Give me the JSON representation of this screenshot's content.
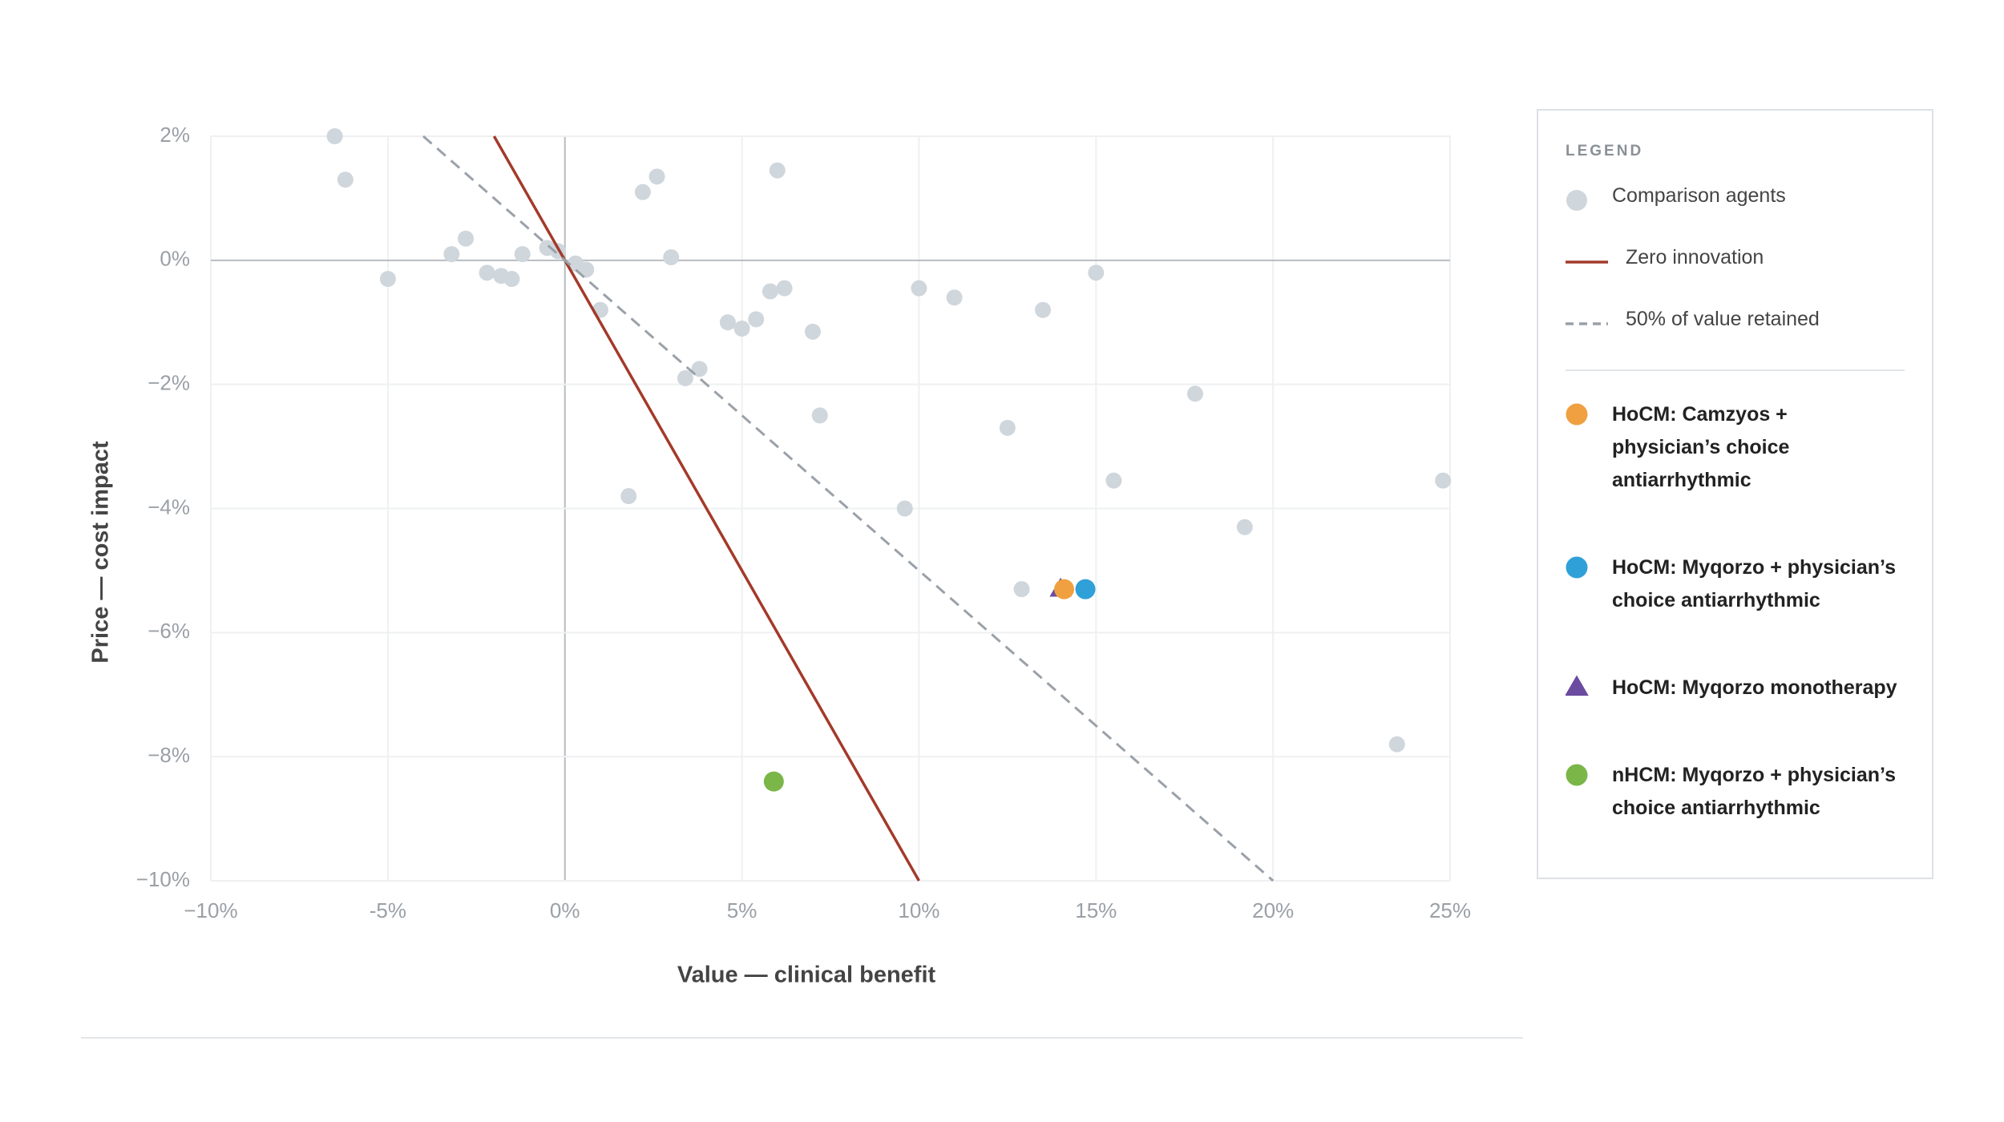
{
  "chart_data": {
    "type": "scatter",
    "x_label": "Value — clinical benefit",
    "y_label": "Price — cost impact",
    "legend_title": "LEGEND",
    "legend_position": "right",
    "grid": true,
    "xlim": [
      -10,
      25
    ],
    "ylim": [
      -10,
      2
    ],
    "xticks": [
      {
        "value": -10,
        "label": "−10%"
      },
      {
        "value": -5,
        "label": "-5%"
      },
      {
        "value": 0,
        "label": "0%"
      },
      {
        "value": 5,
        "label": "5%"
      },
      {
        "value": 10,
        "label": "10%"
      },
      {
        "value": 15,
        "label": "15%"
      },
      {
        "value": 20,
        "label": "20%"
      },
      {
        "value": 25,
        "label": "25%"
      }
    ],
    "yticks": [
      {
        "value": 2,
        "label": "2%"
      },
      {
        "value": 0,
        "label": "0%"
      },
      {
        "value": -2,
        "label": "−2%"
      },
      {
        "value": -4,
        "label": "−4%"
      },
      {
        "value": -6,
        "label": "−6%"
      },
      {
        "value": -8,
        "label": "−8%"
      },
      {
        "value": -10,
        "label": "−10%"
      }
    ],
    "series": [
      {
        "name": "Comparison agents",
        "color": "#cfd6dc",
        "kind": "points",
        "marker": "circle",
        "x": [
          -6.5,
          -6.2,
          -5.0,
          -3.2,
          -2.8,
          -2.2,
          -1.8,
          -1.5,
          -1.2,
          -0.5,
          -0.2,
          0.3,
          0.6,
          1.0,
          2.2,
          2.6,
          3.0,
          1.8,
          3.4,
          3.8,
          4.6,
          5.0,
          5.4,
          5.8,
          6.2,
          6.0,
          7.0,
          7.2,
          9.6,
          10.0,
          11.0,
          12.5,
          12.9,
          13.5,
          15.0,
          15.5,
          17.8,
          19.2,
          23.5,
          24.8
        ],
        "values": [
          2.0,
          1.3,
          -0.3,
          0.1,
          0.35,
          -0.2,
          -0.25,
          -0.3,
          0.1,
          0.2,
          0.15,
          -0.05,
          -0.15,
          -0.8,
          1.1,
          1.35,
          0.05,
          -3.8,
          -1.9,
          -1.75,
          -1.0,
          -1.1,
          -0.95,
          -0.5,
          -0.45,
          1.45,
          -1.15,
          -2.5,
          -4.0,
          -0.45,
          -0.6,
          -2.7,
          -5.3,
          -0.8,
          -0.2,
          -3.55,
          -2.15,
          -4.3,
          -7.8,
          -3.55
        ]
      },
      {
        "name": "Zero innovation",
        "color": "#a33a2a",
        "kind": "line",
        "x": [
          -2,
          10
        ],
        "values": [
          2,
          -10
        ]
      },
      {
        "name": "50% of value retained",
        "color": "#9aa1a8",
        "kind": "dashed",
        "x": [
          -4,
          20
        ],
        "values": [
          2,
          -10
        ]
      },
      {
        "name": "HoCM: Camzyos + physician’s choice antiarrhythmic",
        "color": "#f0a040",
        "kind": "highlight",
        "marker": "circle",
        "x": [
          14.1
        ],
        "values": [
          -5.3
        ]
      },
      {
        "name": "HoCM: Myqorzo + physician’s choice antiarrhythmic",
        "color": "#2fa0d8",
        "kind": "highlight",
        "marker": "circle",
        "x": [
          14.7
        ],
        "values": [
          -5.3
        ]
      },
      {
        "name": "HoCM: Myqorzo monotherapy",
        "color": "#6b4ca0",
        "kind": "highlight",
        "marker": "triangle",
        "x": [
          14.0
        ],
        "values": [
          -5.3
        ]
      },
      {
        "name": "nHCM: Myqorzo + physician’s choice antiarrhythmic",
        "color": "#7ab648",
        "kind": "highlight",
        "marker": "circle",
        "x": [
          5.9
        ],
        "values": [
          -8.4
        ]
      }
    ]
  }
}
